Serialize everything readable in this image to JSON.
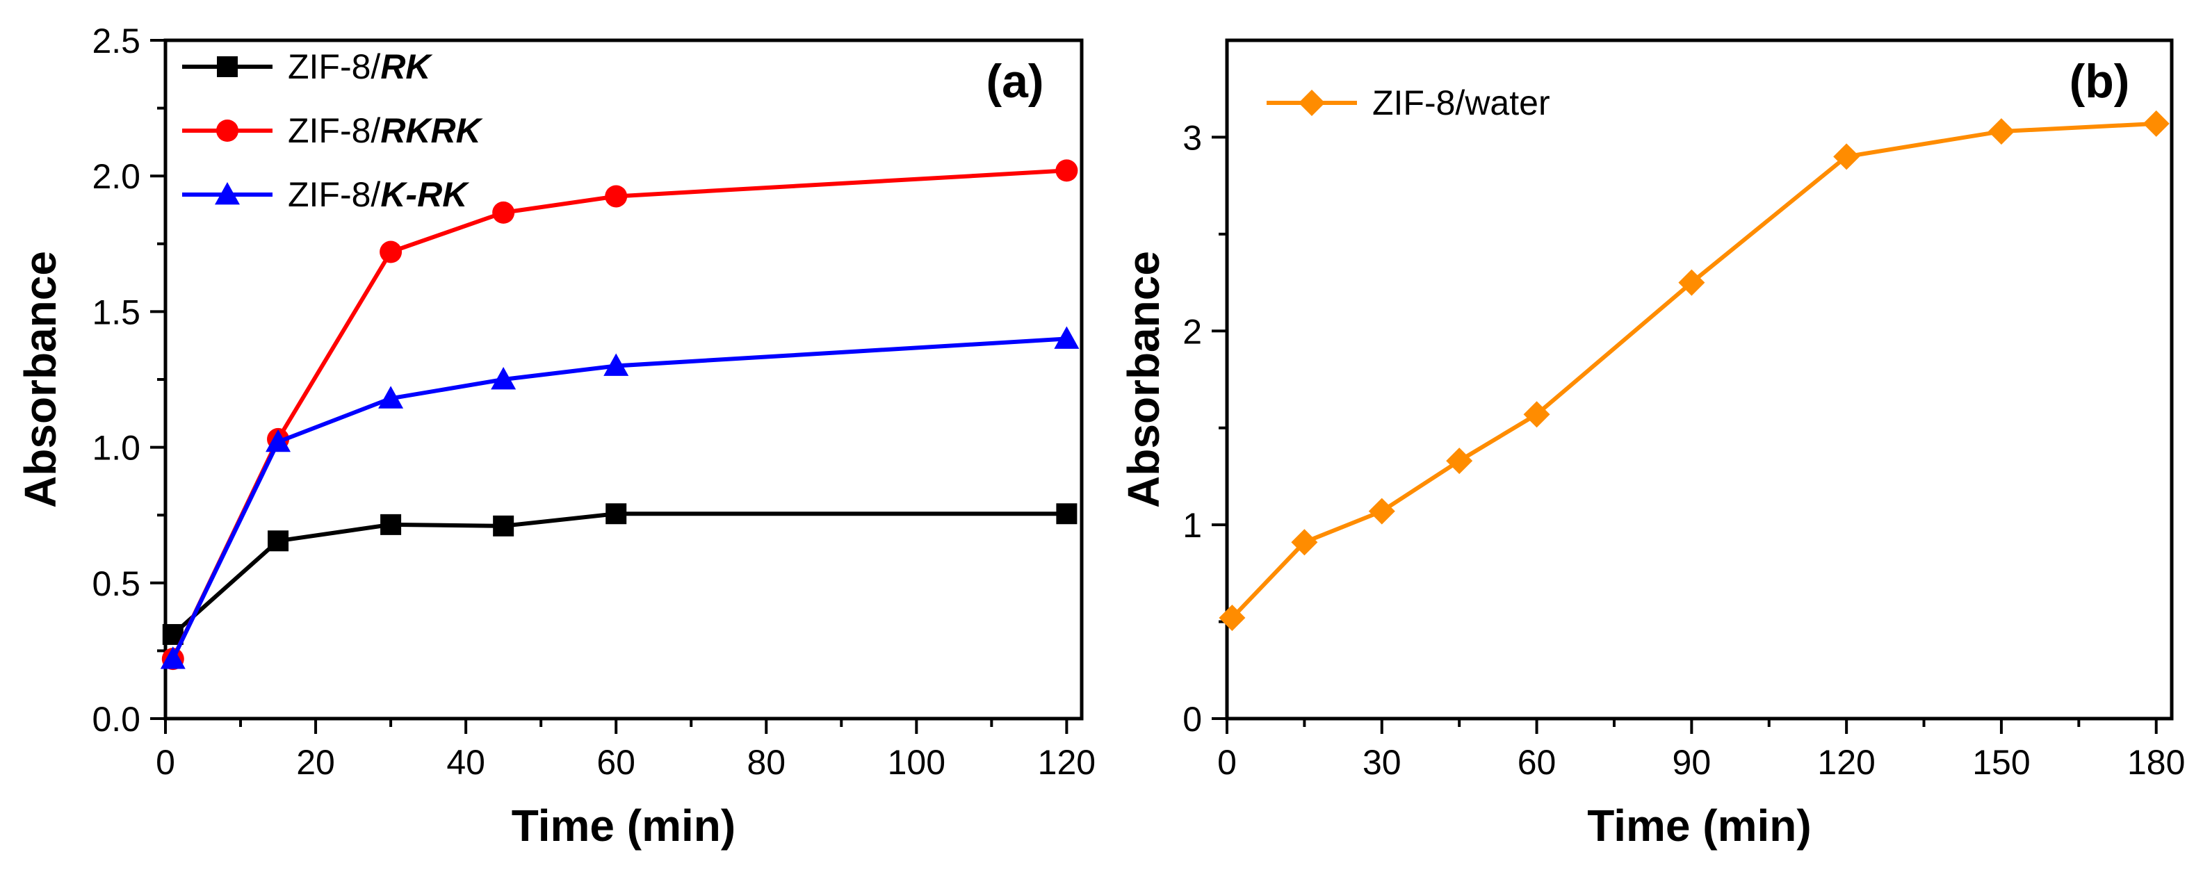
{
  "chart_data": [
    {
      "panel_id": "a",
      "type": "line",
      "panel_label": "(a)",
      "xlabel": "Time (min)",
      "ylabel": "Absorbance",
      "xlim": [
        0,
        122
      ],
      "ylim": [
        0,
        2.5
      ],
      "x_ticks": [
        0,
        20,
        40,
        60,
        80,
        100,
        120
      ],
      "x_tick_labels": [
        "0",
        "20",
        "40",
        "60",
        "80",
        "100",
        "120"
      ],
      "x_minor_ticks": [
        10,
        30,
        50,
        70,
        90,
        110
      ],
      "y_ticks": [
        0,
        0.5,
        1.0,
        1.5,
        2.0,
        2.5
      ],
      "y_tick_labels": [
        "0.0",
        "0.5",
        "1.0",
        "1.5",
        "2.0",
        "2.5"
      ],
      "y_minor_ticks": [
        0.25,
        0.75,
        1.25,
        1.75,
        2.25
      ],
      "legend_position": "top-left",
      "series": [
        {
          "name": "ZIF-8/RK",
          "legend_prefix": "ZIF-8/",
          "legend_suffix": "RK",
          "color": "#000000",
          "marker": "square",
          "x": [
            1,
            15,
            30,
            45,
            60,
            120
          ],
          "values": [
            0.31,
            0.655,
            0.715,
            0.71,
            0.755,
            0.755
          ]
        },
        {
          "name": "ZIF-8/RKRK",
          "legend_prefix": "ZIF-8/",
          "legend_suffix": "RKRK",
          "color": "#ff0000",
          "marker": "circle",
          "x": [
            1,
            15,
            30,
            45,
            60,
            120
          ],
          "values": [
            0.22,
            1.03,
            1.72,
            1.865,
            1.925,
            2.02
          ]
        },
        {
          "name": "ZIF-8/K-RK",
          "legend_prefix": "ZIF-8/",
          "legend_suffix": "K-RK",
          "color": "#0000ff",
          "marker": "triangle",
          "x": [
            1,
            15,
            30,
            45,
            60,
            120
          ],
          "values": [
            0.22,
            1.02,
            1.18,
            1.25,
            1.3,
            1.4
          ]
        }
      ]
    },
    {
      "panel_id": "b",
      "type": "line",
      "panel_label": "(b)",
      "xlabel": "Time (min)",
      "ylabel": "Absorbance",
      "xlim": [
        0,
        183
      ],
      "ylim": [
        0,
        3.5
      ],
      "x_ticks": [
        0,
        30,
        60,
        90,
        120,
        150,
        180
      ],
      "x_tick_labels": [
        "0",
        "30",
        "60",
        "90",
        "120",
        "150",
        "180"
      ],
      "x_minor_ticks": [
        15,
        45,
        75,
        105,
        135,
        165
      ],
      "y_ticks": [
        0,
        1,
        2,
        3
      ],
      "y_tick_labels": [
        "0",
        "1",
        "2",
        "3"
      ],
      "y_minor_ticks": [
        0.5,
        1.5,
        2.5
      ],
      "legend_position": "top-left",
      "series": [
        {
          "name": "ZIF-8/water",
          "legend_prefix": "ZIF-8/water",
          "legend_suffix": "",
          "color": "#ff8c00",
          "marker": "diamond",
          "x": [
            1,
            15,
            30,
            45,
            60,
            90,
            120,
            150,
            180
          ],
          "values": [
            0.52,
            0.91,
            1.07,
            1.33,
            1.57,
            2.25,
            2.9,
            3.03,
            3.07
          ]
        }
      ]
    }
  ]
}
